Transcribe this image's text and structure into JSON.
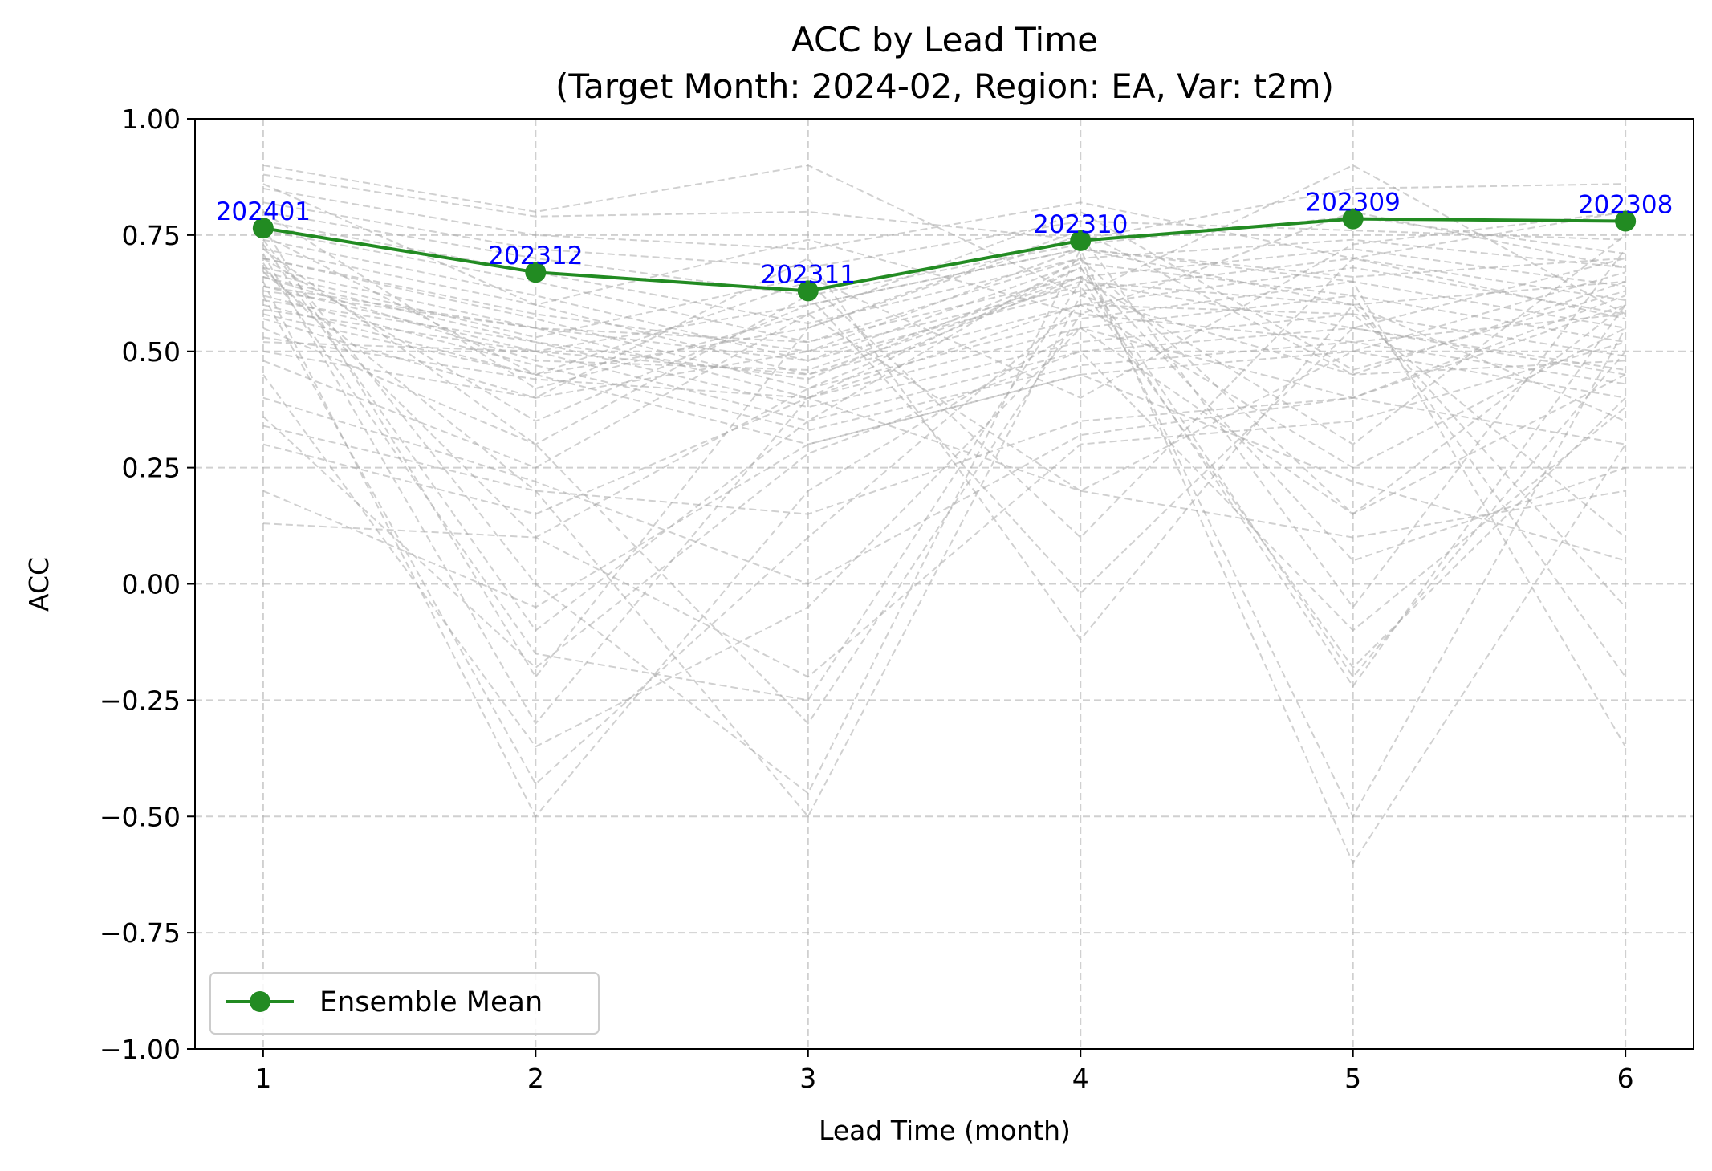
{
  "chart_data": {
    "type": "line",
    "title": "ACC by Lead Time",
    "subtitle": "(Target Month: 2024-02, Region: EA, Var: t2m)",
    "xlabel": "Lead Time (month)",
    "ylabel": "ACC",
    "x": [
      1,
      2,
      3,
      4,
      5,
      6
    ],
    "x_tick_labels": [
      "1",
      "2",
      "3",
      "4",
      "5",
      "6"
    ],
    "xlim": [
      0.75,
      6.25
    ],
    "ylim": [
      -1.0,
      1.0
    ],
    "y_ticks": [
      1.0,
      0.75,
      0.5,
      0.25,
      0.0,
      -0.25,
      -0.5,
      -0.75,
      -1.0
    ],
    "y_tick_labels": [
      "1.00",
      "0.75",
      "0.50",
      "0.25",
      "0.00",
      "−0.25",
      "−0.50",
      "−0.75",
      "−1.00"
    ],
    "grid": true,
    "legend_position": "lower-left",
    "series": [
      {
        "name": "Ensemble Mean",
        "color": "#228b22",
        "marker": "circle",
        "values": [
          0.765,
          0.67,
          0.63,
          0.738,
          0.785,
          0.78
        ],
        "annotations": [
          "202401",
          "202312",
          "202311",
          "202310",
          "202309",
          "202308"
        ]
      }
    ],
    "members_color": "#a9a9a9",
    "members": [
      [
        0.9,
        0.8,
        0.9,
        0.62,
        0.9,
        0.58
      ],
      [
        0.88,
        0.79,
        0.8,
        0.74,
        0.85,
        0.86
      ],
      [
        0.85,
        0.75,
        0.72,
        0.82,
        0.7,
        0.8
      ],
      [
        0.82,
        0.72,
        0.68,
        0.78,
        0.76,
        0.74
      ],
      [
        0.8,
        0.7,
        0.62,
        0.73,
        0.79,
        0.71
      ],
      [
        0.78,
        0.67,
        0.56,
        0.7,
        0.74,
        0.68
      ],
      [
        0.76,
        0.65,
        0.52,
        0.66,
        0.72,
        0.64
      ],
      [
        0.74,
        0.62,
        0.48,
        0.63,
        0.7,
        0.61
      ],
      [
        0.72,
        0.6,
        0.45,
        0.6,
        0.68,
        0.58
      ],
      [
        0.7,
        0.57,
        0.42,
        0.57,
        0.65,
        0.55
      ],
      [
        0.68,
        0.55,
        0.4,
        0.55,
        0.62,
        0.52
      ],
      [
        0.66,
        0.52,
        0.38,
        0.52,
        0.58,
        0.49
      ],
      [
        0.64,
        0.5,
        0.35,
        0.5,
        0.55,
        0.46
      ],
      [
        0.62,
        0.47,
        0.33,
        0.47,
        0.52,
        0.43
      ],
      [
        0.6,
        0.45,
        0.3,
        0.45,
        0.5,
        0.4
      ],
      [
        0.7,
        0.35,
        0.6,
        0.72,
        0.66,
        0.7
      ],
      [
        0.75,
        0.45,
        0.55,
        0.76,
        0.45,
        0.65
      ],
      [
        0.68,
        0.1,
        0.42,
        0.66,
        0.3,
        0.75
      ],
      [
        0.73,
        -0.1,
        0.35,
        0.7,
        0.15,
        0.6
      ],
      [
        0.77,
        -0.2,
        0.55,
        0.75,
        -0.05,
        0.72
      ],
      [
        0.71,
        -0.3,
        0.4,
        0.68,
        -0.2,
        0.5
      ],
      [
        0.65,
        -0.5,
        0.2,
        0.55,
        0.4,
        0.62
      ],
      [
        0.62,
        -0.43,
        0.1,
        0.6,
        0.25,
        0.55
      ],
      [
        0.69,
        -0.15,
        -0.25,
        0.65,
        0.55,
        0.45
      ],
      [
        0.74,
        0.0,
        -0.45,
        0.72,
        0.6,
        0.35
      ],
      [
        0.67,
        0.2,
        -0.5,
        0.62,
        0.45,
        0.48
      ],
      [
        0.72,
        0.3,
        -0.3,
        0.58,
        0.52,
        0.58
      ],
      [
        0.5,
        0.4,
        0.7,
        -0.12,
        0.6,
        0.65
      ],
      [
        0.55,
        0.3,
        0.62,
        -0.02,
        0.55,
        0.7
      ],
      [
        0.48,
        0.25,
        0.58,
        0.2,
        0.5,
        0.67
      ],
      [
        0.58,
        0.45,
        0.65,
        0.1,
        0.7,
        0.57
      ],
      [
        0.52,
        0.5,
        0.6,
        0.72,
        -0.6,
        0.3
      ],
      [
        0.63,
        0.55,
        0.52,
        0.7,
        -0.5,
        0.55
      ],
      [
        0.66,
        0.48,
        0.46,
        0.66,
        -0.22,
        0.6
      ],
      [
        0.57,
        0.4,
        0.5,
        0.64,
        -0.18,
        0.4
      ],
      [
        0.61,
        0.52,
        0.44,
        0.68,
        0.05,
        0.25
      ],
      [
        0.7,
        0.58,
        0.5,
        0.72,
        0.65,
        -0.35
      ],
      [
        0.64,
        0.55,
        0.48,
        0.69,
        0.62,
        -0.2
      ],
      [
        0.59,
        0.5,
        0.45,
        0.65,
        0.6,
        -0.05
      ],
      [
        0.53,
        0.44,
        0.4,
        0.6,
        0.58,
        0.1
      ],
      [
        0.34,
        0.2,
        0.15,
        0.35,
        0.4,
        0.3
      ],
      [
        0.3,
        0.15,
        0.4,
        0.2,
        0.1,
        0.2
      ],
      [
        0.2,
        -0.05,
        0.3,
        0.45,
        0.22,
        0.05
      ],
      [
        0.13,
        0.1,
        -0.2,
        0.3,
        0.35,
        0.52
      ],
      [
        0.4,
        0.22,
        0.0,
        0.32,
        0.4,
        0.6
      ],
      [
        0.45,
        -0.35,
        -0.05,
        0.55,
        0.15,
        0.45
      ],
      [
        0.36,
        -0.18,
        0.28,
        0.5,
        -0.1,
        0.38
      ],
      [
        0.8,
        0.42,
        0.58,
        0.8,
        0.46,
        0.63
      ],
      [
        0.86,
        0.6,
        0.74,
        0.58,
        0.8,
        0.68
      ],
      [
        0.67,
        0.53,
        0.66,
        0.4,
        0.73,
        0.8
      ]
    ]
  }
}
